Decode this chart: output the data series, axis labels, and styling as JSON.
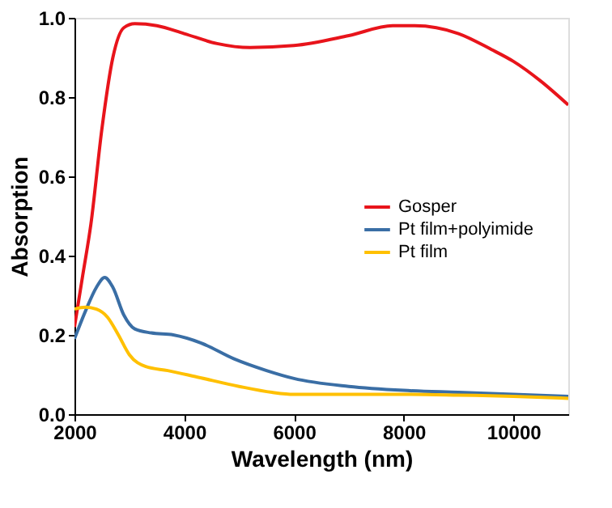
{
  "chart_data": {
    "type": "line",
    "xlabel": "Wavelength (nm)",
    "ylabel": "Absorption",
    "xlim": [
      2000,
      11000
    ],
    "ylim": [
      0,
      1.0
    ],
    "xticks": [
      2000,
      4000,
      6000,
      8000,
      10000
    ],
    "yticks": [
      {
        "value": 0,
        "label": "0.0"
      },
      0.2,
      0.4,
      0.6,
      {
        "value": 0.8,
        "label": "0.8"
      },
      {
        "value": 1,
        "label": "1.0"
      }
    ],
    "grid": false,
    "legend": "right",
    "marker": "none",
    "line_style": "solid",
    "series": [
      {
        "name": "Gosper",
        "color": "#e8141b",
        "x": [
          2000,
          2150,
          2300,
          2500,
          2700,
          2900,
          3100,
          3500,
          4000,
          4600,
          5200,
          6000,
          7000,
          7800,
          8200,
          9000,
          9600,
          10000,
          10500,
          11000
        ],
        "values": [
          0.22,
          0.35,
          0.48,
          0.72,
          0.9,
          0.975,
          0.985,
          0.98,
          0.96,
          0.935,
          0.925,
          0.93,
          0.955,
          0.98,
          0.98,
          0.96,
          0.92,
          0.89,
          0.84,
          0.78
        ]
      },
      {
        "name": "Pt film+polyimide",
        "color": "#3a6ea5",
        "x": [
          2000,
          2200,
          2400,
          2550,
          2700,
          2900,
          3100,
          3400,
          3800,
          4300,
          4900,
          5500,
          6000,
          7000,
          8000,
          9000,
          10000,
          11000
        ],
        "values": [
          0.19,
          0.26,
          0.32,
          0.345,
          0.32,
          0.25,
          0.215,
          0.205,
          0.2,
          0.18,
          0.14,
          0.11,
          0.09,
          0.07,
          0.06,
          0.055,
          0.05,
          0.045
        ]
      },
      {
        "name": "Pt film",
        "color": "#ffc000",
        "x": [
          2000,
          2200,
          2400,
          2600,
          2800,
          3000,
          3300,
          3700,
          4200,
          5000,
          5600,
          6000,
          7000,
          8000,
          9000,
          10000,
          11000
        ],
        "values": [
          0.265,
          0.27,
          0.265,
          0.245,
          0.2,
          0.15,
          0.12,
          0.11,
          0.095,
          0.07,
          0.055,
          0.05,
          0.05,
          0.05,
          0.048,
          0.045,
          0.04
        ]
      }
    ]
  }
}
